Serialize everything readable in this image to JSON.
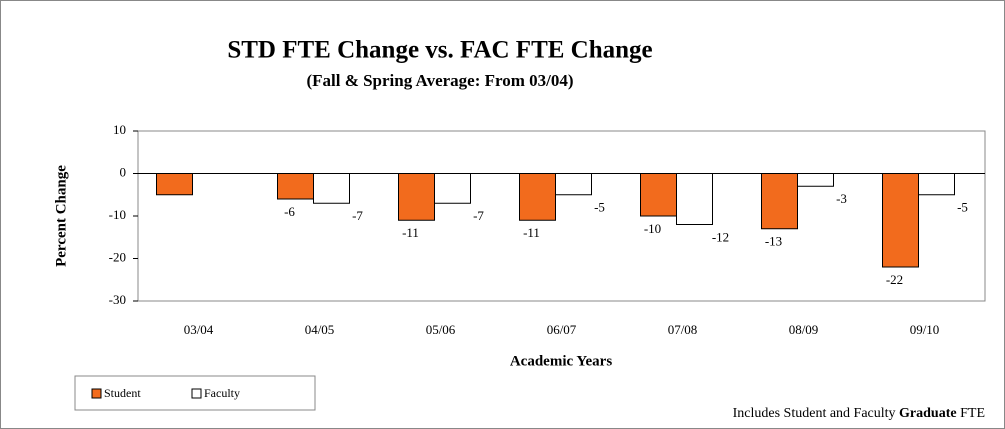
{
  "chart_data": {
    "type": "bar",
    "title": "STD FTE Change vs. FAC FTE Change",
    "subtitle": "(Fall & Spring Average: From 03/04)",
    "y_label": "Percent Change",
    "x_label": "Academic Years",
    "note": [
      "Includes Student and Faculty",
      "Graduate",
      "FTE"
    ],
    "categories": [
      "03/04",
      "04/05",
      "05/06",
      "06/07",
      "07/08",
      "08/09",
      "09/10"
    ],
    "series": [
      {
        "name": "Student",
        "color": "#f26b1d",
        "values": [
          -5,
          -6,
          -11,
          -11,
          -10,
          -13,
          -22
        ],
        "value_labels": [
          null,
          -6,
          -11,
          -11,
          -10,
          -13,
          -22
        ]
      },
      {
        "name": "Faculty",
        "color": "#ffffff",
        "values": [
          null,
          -7,
          -7,
          -5,
          -12,
          -3,
          -5
        ],
        "value_labels": [
          null,
          -7,
          -7,
          -5,
          -12,
          -3,
          -5
        ]
      }
    ],
    "ylim": [
      -30,
      10
    ],
    "yticks": [
      -30,
      -20,
      -10,
      0,
      10
    ],
    "grid": false,
    "legend": "bottom-left"
  }
}
